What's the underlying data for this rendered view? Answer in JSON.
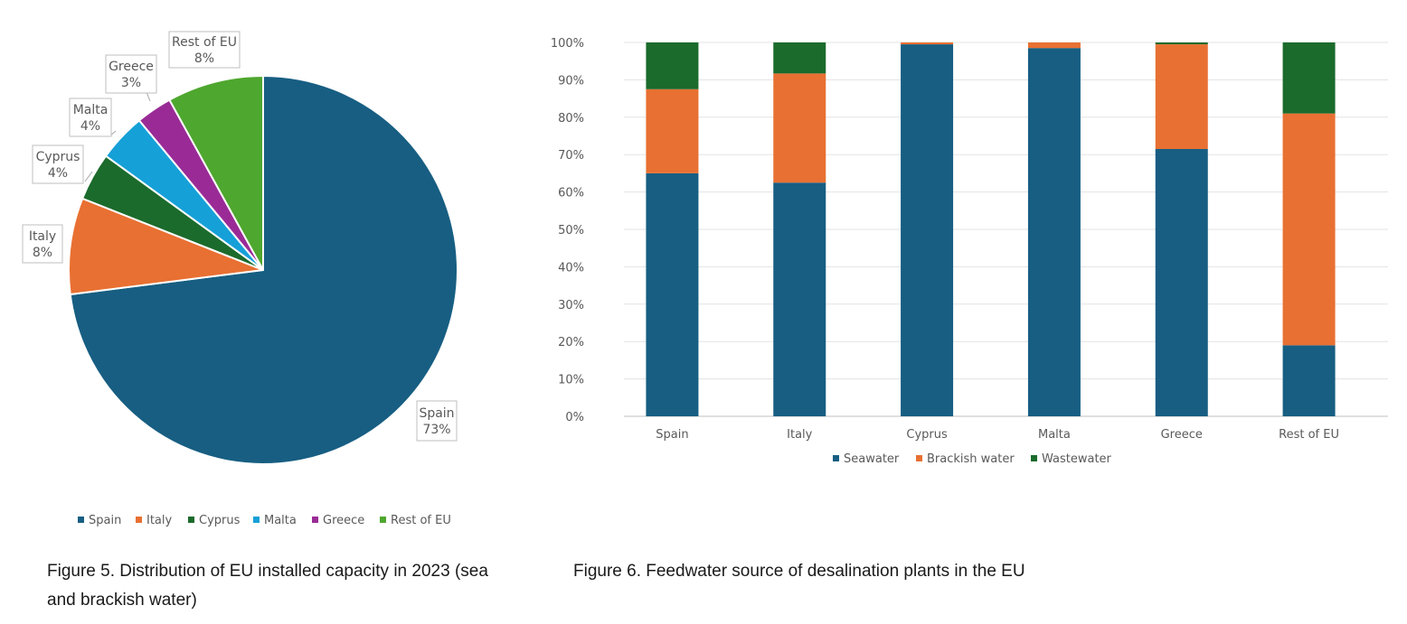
{
  "chart_data": [
    {
      "type": "pie",
      "title": "",
      "slices": [
        {
          "label": "Spain",
          "value": 73,
          "display": "73%",
          "color": "#175e82"
        },
        {
          "label": "Italy",
          "value": 8,
          "display": "8%",
          "color": "#e87032"
        },
        {
          "label": "Cyprus",
          "value": 4,
          "display": "4%",
          "color": "#1b6b2c"
        },
        {
          "label": "Malta",
          "value": 4,
          "display": "4%",
          "color": "#16a0d8"
        },
        {
          "label": "Greece",
          "value": 3,
          "display": "3%",
          "color": "#9a2b96"
        },
        {
          "label": "Rest of EU",
          "value": 8,
          "display": "8%",
          "color": "#4ea72e"
        }
      ],
      "legend": {
        "position": "bottom",
        "entries": [
          "Spain",
          "Italy",
          "Cyprus",
          "Malta",
          "Greece",
          "Rest of EU"
        ]
      }
    },
    {
      "type": "bar",
      "stacked": true,
      "percent": true,
      "categories": [
        "Spain",
        "Italy",
        "Cyprus",
        "Malta",
        "Greece",
        "Rest of EU"
      ],
      "series": [
        {
          "name": "Seawater",
          "color": "#175e82",
          "values": [
            65,
            62.5,
            99.5,
            98.5,
            71.5,
            19
          ]
        },
        {
          "name": "Brackish water",
          "color": "#e87032",
          "values": [
            22.5,
            29.2,
            0.5,
            1.5,
            28,
            62
          ]
        },
        {
          "name": "Wastewater",
          "color": "#1b6b2c",
          "values": [
            12.5,
            8.3,
            0,
            0,
            0.5,
            19
          ]
        }
      ],
      "ylim": [
        0,
        100
      ],
      "yticks": [
        "0%",
        "10%",
        "20%",
        "30%",
        "40%",
        "50%",
        "60%",
        "70%",
        "80%",
        "90%",
        "100%"
      ],
      "grid": true,
      "legend": {
        "position": "bottom"
      },
      "xlabel": "",
      "ylabel": ""
    }
  ],
  "captions": {
    "figure5": "Figure 5. Distribution of EU installed capacity in 2023 (sea and brackish water)",
    "figure6": "Figure 6. Feedwater source of desalination plants in the EU"
  }
}
